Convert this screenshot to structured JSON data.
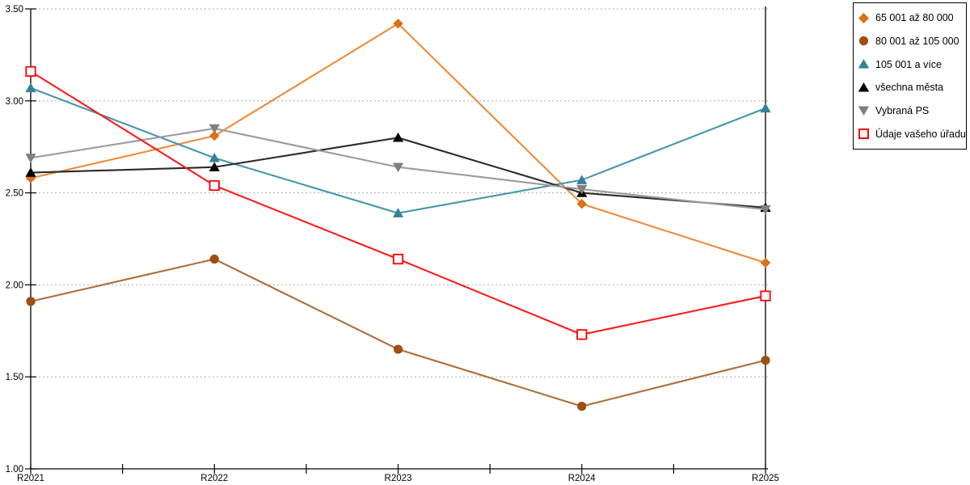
{
  "chart_data": {
    "type": "line",
    "categories": [
      "R2021",
      "R2022",
      "R2023",
      "R2024",
      "R2025"
    ],
    "y_tick_labels": [
      "1.00",
      "1.50",
      "2.00",
      "2.50",
      "3.00",
      "3.50"
    ],
    "y_tick_values": [
      1.0,
      1.5,
      2.0,
      2.5,
      3.0,
      3.5
    ],
    "ylim": [
      1.0,
      3.5
    ],
    "grid": "horizontal-dotted",
    "legend_position": "top-right",
    "axis_color": "#000000",
    "grid_color": "#ACACAC",
    "series": [
      {
        "name": "65 001 až 80 000",
        "marker": "diamond",
        "color": "#DD6F14",
        "line_color": "#ED8A37",
        "values": [
          2.58,
          2.81,
          3.42,
          2.44,
          2.12
        ]
      },
      {
        "name": "80 001 až 105 000",
        "marker": "circle",
        "color": "#9E4F12",
        "line_color": "#AE6E38",
        "values": [
          1.91,
          2.14,
          1.65,
          1.34,
          1.59
        ]
      },
      {
        "name": "105 001 a více",
        "marker": "triangle-up",
        "color": "#35809B",
        "line_color": "#4596AC",
        "values": [
          3.07,
          2.69,
          2.39,
          2.57,
          2.96
        ]
      },
      {
        "name": "všechna města",
        "marker": "triangle-up",
        "color": "#000000",
        "line_color": "#2B2B2B",
        "values": [
          2.61,
          2.64,
          2.8,
          2.5,
          2.42
        ]
      },
      {
        "name": "Vybraná PS",
        "marker": "triangle-down",
        "color": "#7F7F7F",
        "line_color": "#9B9B9B",
        "values": [
          2.69,
          2.85,
          2.64,
          2.52,
          2.41
        ]
      },
      {
        "name": "Údaje vašeho úřadu",
        "marker": "square-open",
        "color": "#FF0000",
        "line_color": "#FB1D1D",
        "values": [
          3.16,
          2.54,
          2.14,
          1.73,
          1.94
        ]
      }
    ]
  }
}
